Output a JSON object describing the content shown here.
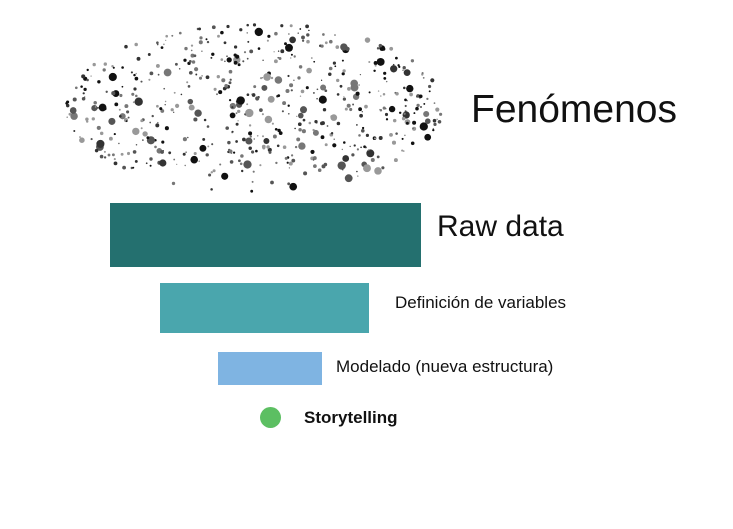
{
  "labels": {
    "phenomena": "Fenómenos",
    "raw_data": "Raw data",
    "variables": "Definición de variables",
    "modeling": "Modelado (nueva estructura)",
    "storytelling": "Storytelling"
  },
  "colors": {
    "raw_data": "#24706f",
    "variables": "#4aa6ad",
    "modeling": "#7fb4e2",
    "storytelling": "#5cbf62",
    "particles": "#333333"
  },
  "icons": {
    "phenomena": "particle-cloud-icon"
  }
}
